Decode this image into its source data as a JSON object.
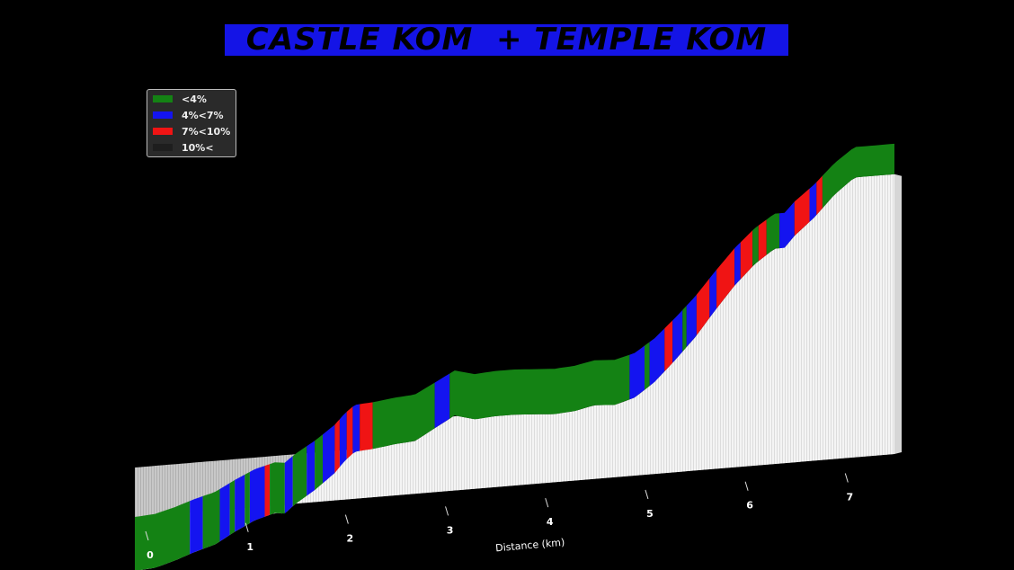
{
  "chart_data": {
    "type": "area",
    "title": "CASTLE KOM  + TEMPLE KOM",
    "xlabel": "Distance (km)",
    "xlim": [
      0,
      7.6
    ],
    "x_ticks": [
      "0",
      "1",
      "2",
      "3",
      "4",
      "5",
      "6",
      "7"
    ],
    "legend_position": "top-left",
    "legend": [
      {
        "label": "<4%",
        "color": "#148214"
      },
      {
        "label": "4%<7%",
        "color": "#1414f0"
      },
      {
        "label": "7%<10%",
        "color": "#f01414"
      },
      {
        "label": "10%<",
        "color": "#1e1e1e"
      }
    ],
    "profile": {
      "distance_km": [
        0,
        0.2,
        0.4,
        0.6,
        0.8,
        1.0,
        1.2,
        1.4,
        1.5,
        1.6,
        1.8,
        2.0,
        2.1,
        2.2,
        2.4,
        2.6,
        2.8,
        3.0,
        3.2,
        3.4,
        3.6,
        3.8,
        4.0,
        4.2,
        4.4,
        4.6,
        4.8,
        5.0,
        5.2,
        5.4,
        5.6,
        5.8,
        6.0,
        6.2,
        6.4,
        6.5,
        6.6,
        6.8,
        7.0,
        7.2,
        7.4,
        7.6
      ],
      "elevation_m": [
        0,
        1,
        5,
        10,
        14,
        22,
        29,
        33,
        32,
        38,
        47,
        58,
        66,
        72,
        73,
        75,
        76,
        84,
        92,
        88,
        89,
        89,
        88,
        87,
        88,
        91,
        90,
        94,
        104,
        118,
        133,
        151,
        168,
        182,
        192,
        192,
        200,
        212,
        227,
        238,
        238,
        238
      ]
    },
    "grade_segments": [
      {
        "from": 0.0,
        "to": 0.55,
        "class": "<4%"
      },
      {
        "from": 0.55,
        "to": 0.68,
        "class": "4%<7%"
      },
      {
        "from": 0.68,
        "to": 0.85,
        "class": "<4%"
      },
      {
        "from": 0.85,
        "to": 0.95,
        "class": "4%<7%"
      },
      {
        "from": 0.95,
        "to": 1.0,
        "class": "<4%"
      },
      {
        "from": 1.0,
        "to": 1.1,
        "class": "4%<7%"
      },
      {
        "from": 1.1,
        "to": 1.15,
        "class": "<4%"
      },
      {
        "from": 1.15,
        "to": 1.3,
        "class": "4%<7%"
      },
      {
        "from": 1.3,
        "to": 1.35,
        "class": "7%<10%"
      },
      {
        "from": 1.35,
        "to": 1.5,
        "class": "<4%"
      },
      {
        "from": 1.5,
        "to": 1.58,
        "class": "4%<7%"
      },
      {
        "from": 1.58,
        "to": 1.72,
        "class": "<4%"
      },
      {
        "from": 1.72,
        "to": 1.8,
        "class": "4%<7%"
      },
      {
        "from": 1.8,
        "to": 1.88,
        "class": "<4%"
      },
      {
        "from": 1.88,
        "to": 2.0,
        "class": "4%<7%"
      },
      {
        "from": 2.0,
        "to": 2.05,
        "class": "7%<10%"
      },
      {
        "from": 2.05,
        "to": 2.12,
        "class": "4%<7%"
      },
      {
        "from": 2.12,
        "to": 2.18,
        "class": "7%<10%"
      },
      {
        "from": 2.18,
        "to": 2.25,
        "class": "4%<7%"
      },
      {
        "from": 2.25,
        "to": 2.38,
        "class": "7%<10%"
      },
      {
        "from": 2.38,
        "to": 3.0,
        "class": "<4%"
      },
      {
        "from": 3.0,
        "to": 3.15,
        "class": "4%<7%"
      },
      {
        "from": 3.15,
        "to": 4.95,
        "class": "<4%"
      },
      {
        "from": 4.95,
        "to": 5.1,
        "class": "4%<7%"
      },
      {
        "from": 5.1,
        "to": 5.15,
        "class": "<4%"
      },
      {
        "from": 5.15,
        "to": 5.3,
        "class": "4%<7%"
      },
      {
        "from": 5.3,
        "to": 5.38,
        "class": "7%<10%"
      },
      {
        "from": 5.38,
        "to": 5.48,
        "class": "4%<7%"
      },
      {
        "from": 5.48,
        "to": 5.52,
        "class": "<4%"
      },
      {
        "from": 5.52,
        "to": 5.62,
        "class": "4%<7%"
      },
      {
        "from": 5.62,
        "to": 5.75,
        "class": "7%<10%"
      },
      {
        "from": 5.75,
        "to": 5.82,
        "class": "4%<7%"
      },
      {
        "from": 5.82,
        "to": 6.0,
        "class": "7%<10%"
      },
      {
        "from": 6.0,
        "to": 6.06,
        "class": "4%<7%"
      },
      {
        "from": 6.06,
        "to": 6.18,
        "class": "7%<10%"
      },
      {
        "from": 6.18,
        "to": 6.24,
        "class": "<4%"
      },
      {
        "from": 6.24,
        "to": 6.32,
        "class": "7%<10%"
      },
      {
        "from": 6.32,
        "to": 6.45,
        "class": "<4%"
      },
      {
        "from": 6.45,
        "to": 6.6,
        "class": "4%<7%"
      },
      {
        "from": 6.6,
        "to": 6.75,
        "class": "7%<10%"
      },
      {
        "from": 6.75,
        "to": 6.82,
        "class": "4%<7%"
      },
      {
        "from": 6.82,
        "to": 6.88,
        "class": "7%<10%"
      },
      {
        "from": 6.88,
        "to": 7.6,
        "class": "<4%"
      }
    ]
  }
}
